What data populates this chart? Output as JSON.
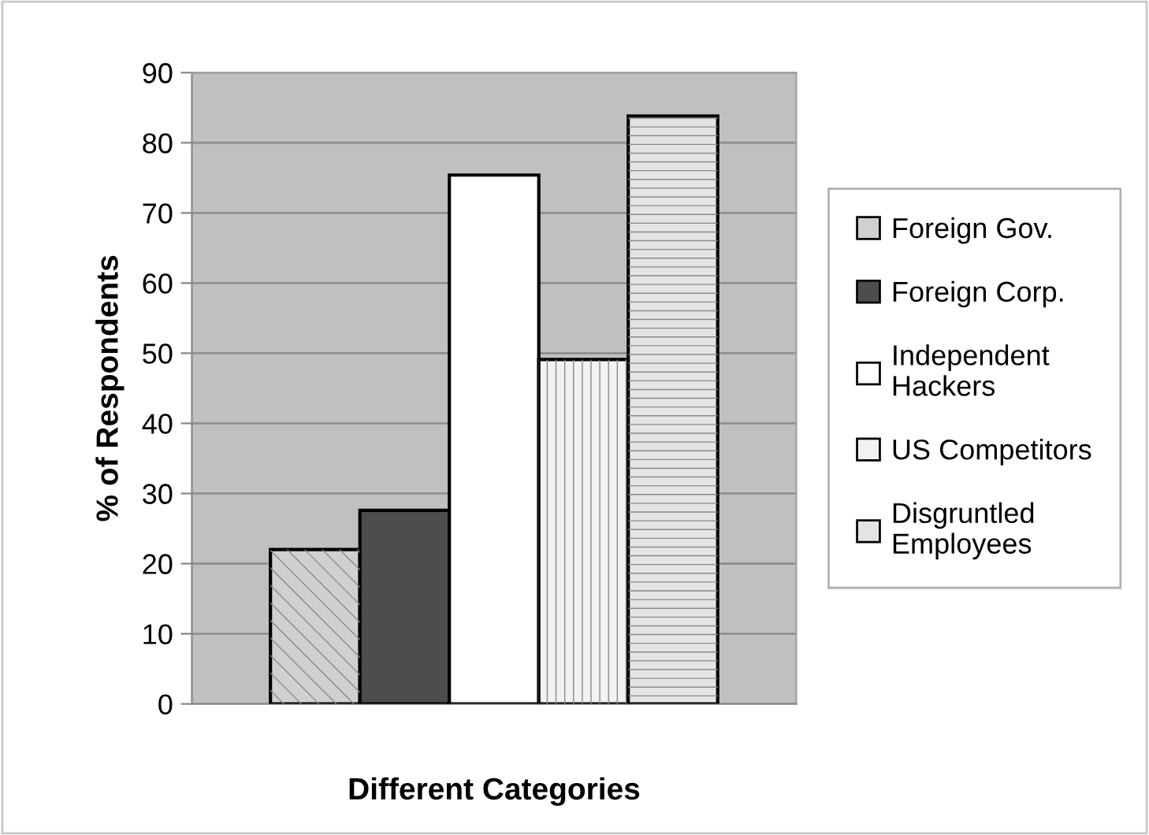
{
  "chart_data": {
    "type": "bar",
    "xlabel": "Different Categories",
    "ylabel": "% of Respondents",
    "categories": [
      null
    ],
    "series": [
      {
        "name": "Foreign Gov.",
        "color": "#d0d0d0",
        "values": [
          22
        ]
      },
      {
        "name": "Foreign Corp.",
        "color": "#4d4d4d",
        "values": [
          27.6
        ]
      },
      {
        "name": "Independent\nHackers",
        "color": "#ffffff",
        "values": [
          75.4
        ]
      },
      {
        "name": "US Competitors",
        "color": "#f2f2f2",
        "values": [
          49.1
        ]
      },
      {
        "name": "Disgruntled\nEmployees",
        "color": "#e4e4e4",
        "values": [
          83.8
        ]
      }
    ],
    "ylim": [
      0,
      90
    ],
    "yticks": [
      0,
      10,
      20,
      30,
      40,
      50,
      60,
      70,
      80,
      90
    ],
    "grid": "y",
    "legend": "right"
  }
}
